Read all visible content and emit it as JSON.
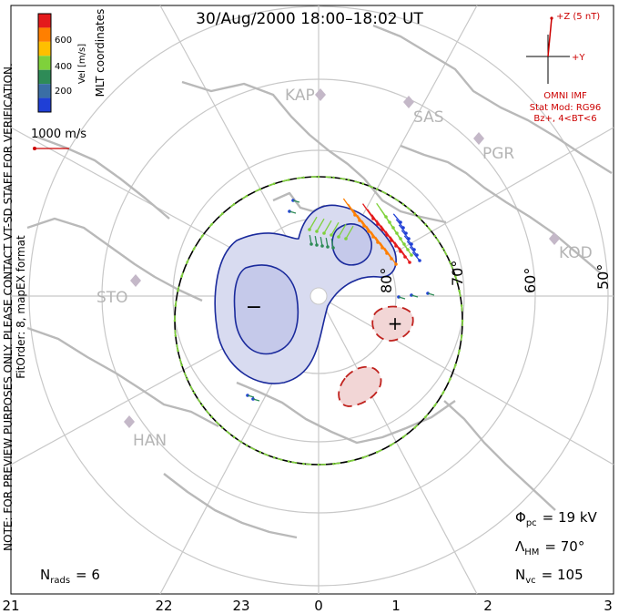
{
  "title": "30/Aug/2000 18:00–18:02 UT",
  "coordinates_label": "MLT coordinates",
  "colorbar": {
    "unit_label": "Vel [m/s]",
    "ticks": [
      "600",
      "400",
      "200"
    ],
    "colors": [
      "#e41a1c",
      "#ff7f00",
      "#ffbf00",
      "#7fd13b",
      "#2e8b57",
      "#3a6ea5",
      "#1f3fd6"
    ]
  },
  "reference_vector": {
    "label": "1000 m/s",
    "color": "#cc0000"
  },
  "note_lines": [
    "NOTE: FOR PREVIEW PURPOSES ONLY. PLEASE CONTACT VT-SD STAFF FOR VERIFICATION.",
    "FitOrder: 8, mapEX format"
  ],
  "imf": {
    "z_label": "+Z (5 nT)",
    "y_label": "+Y",
    "source_label": "OMNI IMF",
    "model_line1": "Stat Mod: RG96",
    "model_line2": "Bz+, 4<BT<6",
    "color": "#cc0000"
  },
  "stations": [
    "KAP",
    "SAS",
    "PGR",
    "KOD",
    "STO",
    "HAN"
  ],
  "latitude_labels": [
    "80°",
    "70°",
    "60°",
    "50°"
  ],
  "potential_markers": {
    "negative": "−",
    "positive": "+"
  },
  "stats": {
    "phi_pc_symbol": "Φ",
    "phi_pc_sub": "pc",
    "phi_pc_value": "= 19 kV",
    "lambda_hm_symbol": "Λ",
    "lambda_hm_sub": "HM",
    "lambda_hm_value": "= 70°",
    "n_vc_symbol": "N",
    "n_vc_sub": "vc",
    "n_vc_value": "= 105",
    "n_rads_symbol": "N",
    "n_rads_sub": "rads",
    "n_rads_value": "= 6"
  },
  "mlt_axis": [
    "21",
    "22",
    "23",
    "0",
    "1",
    "2",
    "3"
  ],
  "colors": {
    "land": "#b9b9b9",
    "grid": "#c8c8c8",
    "negative_contour": "#1a2a9c",
    "negative_fill": "#d8dbf0",
    "positive_contour": "#c0221e",
    "positive_fill": "#f2d6d6",
    "boundary_dash": "#7fd13b"
  }
}
